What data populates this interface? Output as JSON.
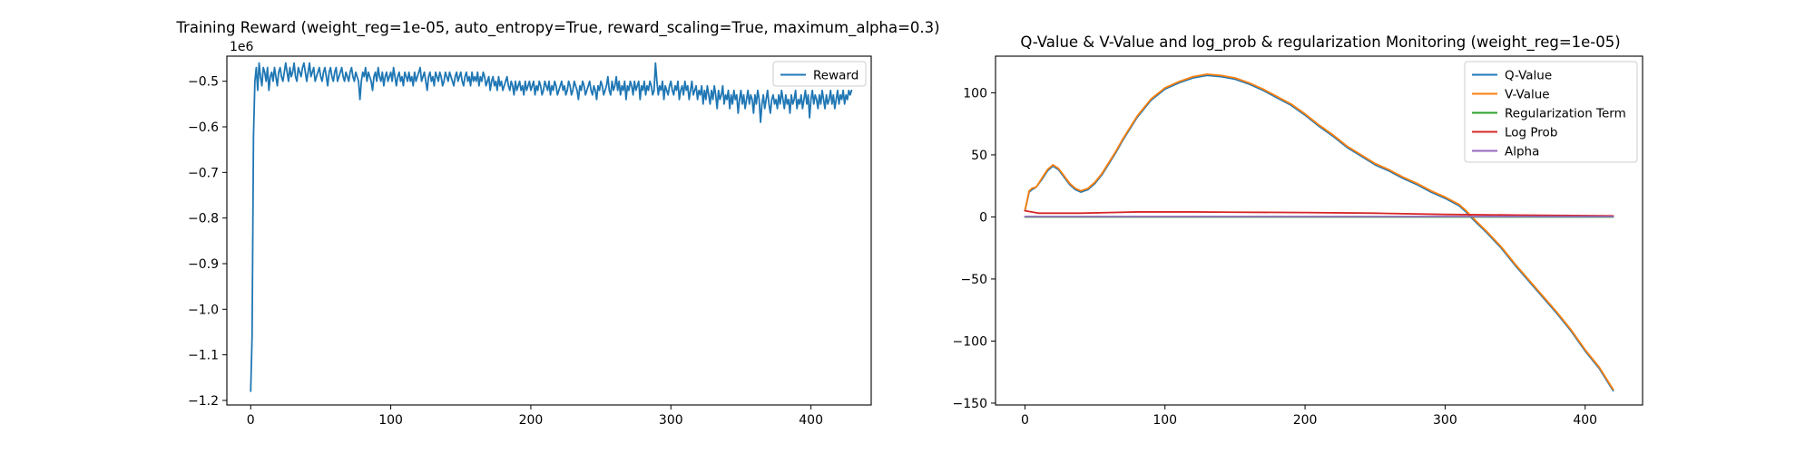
{
  "chart_data": [
    {
      "type": "line",
      "title": "Training Reward (weight_reg=1e-05, auto_entropy=True, reward_scaling=True, maximum_alpha=0.3)",
      "offset_label": "1e6",
      "xlim": [
        -17,
        443
      ],
      "ylim": [
        -1.21,
        -0.445
      ],
      "xticks": [
        0,
        100,
        200,
        300,
        400
      ],
      "yticks": [
        -0.5,
        -0.6,
        -0.7,
        -0.8,
        -0.9,
        -1.0,
        -1.1,
        -1.2
      ],
      "ytick_labels": [
        "−0.5",
        "−0.6",
        "−0.7",
        "−0.8",
        "−0.9",
        "−1.0",
        "−1.1",
        "−1.2"
      ],
      "legend_position": "upper right",
      "series": [
        {
          "name": "Reward",
          "color": "#1f77b4",
          "x_start": 0,
          "x_step": 1,
          "values": [
            -1.18,
            -1.06,
            -0.62,
            -0.5,
            -0.47,
            -0.52,
            -0.46,
            -0.49,
            -0.51,
            -0.47,
            -0.48,
            -0.5,
            -0.47,
            -0.52,
            -0.49,
            -0.48,
            -0.5,
            -0.47,
            -0.49,
            -0.51,
            -0.48,
            -0.47,
            -0.49,
            -0.5,
            -0.48,
            -0.46,
            -0.48,
            -0.5,
            -0.47,
            -0.49,
            -0.48,
            -0.46,
            -0.49,
            -0.5,
            -0.47,
            -0.48,
            -0.49,
            -0.47,
            -0.46,
            -0.48,
            -0.5,
            -0.48,
            -0.46,
            -0.49,
            -0.48,
            -0.47,
            -0.5,
            -0.49,
            -0.48,
            -0.47,
            -0.49,
            -0.5,
            -0.48,
            -0.47,
            -0.49,
            -0.51,
            -0.48,
            -0.47,
            -0.49,
            -0.5,
            -0.48,
            -0.47,
            -0.5,
            -0.49,
            -0.48,
            -0.47,
            -0.49,
            -0.5,
            -0.48,
            -0.49,
            -0.5,
            -0.48,
            -0.47,
            -0.49,
            -0.5,
            -0.48,
            -0.49,
            -0.5,
            -0.54,
            -0.5,
            -0.48,
            -0.49,
            -0.47,
            -0.5,
            -0.48,
            -0.49,
            -0.5,
            -0.52,
            -0.49,
            -0.48,
            -0.5,
            -0.47,
            -0.49,
            -0.5,
            -0.48,
            -0.51,
            -0.49,
            -0.48,
            -0.5,
            -0.49,
            -0.48,
            -0.5,
            -0.47,
            -0.49,
            -0.51,
            -0.49,
            -0.48,
            -0.5,
            -0.49,
            -0.51,
            -0.48,
            -0.49,
            -0.5,
            -0.48,
            -0.5,
            -0.49,
            -0.51,
            -0.48,
            -0.5,
            -0.49,
            -0.48,
            -0.47,
            -0.5,
            -0.49,
            -0.48,
            -0.5,
            -0.52,
            -0.49,
            -0.48,
            -0.5,
            -0.49,
            -0.51,
            -0.48,
            -0.49,
            -0.5,
            -0.48,
            -0.49,
            -0.51,
            -0.5,
            -0.48,
            -0.49,
            -0.5,
            -0.48,
            -0.49,
            -0.5,
            -0.51,
            -0.49,
            -0.48,
            -0.5,
            -0.49,
            -0.48,
            -0.5,
            -0.51,
            -0.49,
            -0.48,
            -0.5,
            -0.49,
            -0.51,
            -0.48,
            -0.5,
            -0.49,
            -0.5,
            -0.48,
            -0.51,
            -0.49,
            -0.5,
            -0.48,
            -0.49,
            -0.51,
            -0.5,
            -0.49,
            -0.52,
            -0.5,
            -0.49,
            -0.51,
            -0.5,
            -0.52,
            -0.49,
            -0.51,
            -0.5,
            -0.52,
            -0.51,
            -0.5,
            -0.49,
            -0.51,
            -0.52,
            -0.5,
            -0.51,
            -0.53,
            -0.5,
            -0.52,
            -0.51,
            -0.5,
            -0.52,
            -0.51,
            -0.53,
            -0.5,
            -0.52,
            -0.51,
            -0.5,
            -0.52,
            -0.51,
            -0.5,
            -0.53,
            -0.51,
            -0.52,
            -0.5,
            -0.51,
            -0.53,
            -0.52,
            -0.5,
            -0.51,
            -0.52,
            -0.5,
            -0.53,
            -0.51,
            -0.52,
            -0.5,
            -0.51,
            -0.53,
            -0.52,
            -0.51,
            -0.5,
            -0.52,
            -0.51,
            -0.53,
            -0.52,
            -0.5,
            -0.51,
            -0.53,
            -0.52,
            -0.5,
            -0.51,
            -0.52,
            -0.54,
            -0.51,
            -0.52,
            -0.5,
            -0.51,
            -0.53,
            -0.52,
            -0.51,
            -0.5,
            -0.52,
            -0.53,
            -0.51,
            -0.52,
            -0.54,
            -0.51,
            -0.52,
            -0.5,
            -0.51,
            -0.53,
            -0.52,
            -0.51,
            -0.49,
            -0.52,
            -0.53,
            -0.5,
            -0.52,
            -0.51,
            -0.49,
            -0.52,
            -0.5,
            -0.53,
            -0.51,
            -0.52,
            -0.5,
            -0.54,
            -0.51,
            -0.52,
            -0.5,
            -0.51,
            -0.53,
            -0.5,
            -0.52,
            -0.51,
            -0.5,
            -0.54,
            -0.51,
            -0.52,
            -0.5,
            -0.53,
            -0.51,
            -0.52,
            -0.5,
            -0.51,
            -0.53,
            -0.52,
            -0.46,
            -0.5,
            -0.53,
            -0.51,
            -0.52,
            -0.5,
            -0.54,
            -0.51,
            -0.52,
            -0.53,
            -0.51,
            -0.5,
            -0.52,
            -0.53,
            -0.51,
            -0.52,
            -0.5,
            -0.54,
            -0.52,
            -0.51,
            -0.53,
            -0.5,
            -0.52,
            -0.51,
            -0.54,
            -0.52,
            -0.5,
            -0.53,
            -0.52,
            -0.51,
            -0.54,
            -0.52,
            -0.53,
            -0.51,
            -0.55,
            -0.52,
            -0.54,
            -0.51,
            -0.53,
            -0.55,
            -0.52,
            -0.54,
            -0.51,
            -0.53,
            -0.56,
            -0.52,
            -0.54,
            -0.53,
            -0.51,
            -0.55,
            -0.53,
            -0.54,
            -0.52,
            -0.56,
            -0.53,
            -0.55,
            -0.52,
            -0.54,
            -0.53,
            -0.57,
            -0.54,
            -0.52,
            -0.55,
            -0.53,
            -0.56,
            -0.54,
            -0.52,
            -0.55,
            -0.53,
            -0.54,
            -0.57,
            -0.53,
            -0.55,
            -0.52,
            -0.54,
            -0.59,
            -0.55,
            -0.53,
            -0.56,
            -0.54,
            -0.52,
            -0.55,
            -0.57,
            -0.54,
            -0.53,
            -0.55,
            -0.54,
            -0.56,
            -0.53,
            -0.55,
            -0.52,
            -0.54,
            -0.56,
            -0.53,
            -0.55,
            -0.54,
            -0.57,
            -0.53,
            -0.55,
            -0.54,
            -0.52,
            -0.56,
            -0.54,
            -0.55,
            -0.53,
            -0.56,
            -0.54,
            -0.52,
            -0.55,
            -0.53,
            -0.58,
            -0.54,
            -0.52,
            -0.55,
            -0.53,
            -0.54,
            -0.56,
            -0.53,
            -0.55,
            -0.52,
            -0.54,
            -0.56,
            -0.53,
            -0.55,
            -0.54,
            -0.52,
            -0.55,
            -0.53,
            -0.56,
            -0.54,
            -0.52,
            -0.55,
            -0.53,
            -0.54,
            -0.52,
            -0.55,
            -0.53,
            -0.54,
            -0.52,
            -0.53,
            -0.52
          ]
        }
      ]
    },
    {
      "type": "line",
      "title": "Q-Value & V-Value and log_prob & regularization Monitoring (weight_reg=1e-05)",
      "xlim": [
        -21,
        441
      ],
      "ylim": [
        -151.5,
        129.5
      ],
      "xticks": [
        0,
        100,
        200,
        300,
        400
      ],
      "yticks": [
        100,
        50,
        0,
        -50,
        -100,
        -150
      ],
      "ytick_labels": [
        "100",
        "50",
        "0",
        "−50",
        "−100",
        "−150"
      ],
      "legend_position": "upper right",
      "series": [
        {
          "name": "Q-Value",
          "color": "#1f77b4",
          "x": [
            0,
            3,
            5,
            8,
            12,
            16,
            20,
            24,
            28,
            32,
            36,
            40,
            45,
            50,
            55,
            60,
            65,
            70,
            80,
            90,
            100,
            110,
            120,
            130,
            140,
            150,
            160,
            170,
            180,
            190,
            200,
            210,
            220,
            230,
            240,
            250,
            260,
            270,
            280,
            290,
            300,
            310,
            315,
            320,
            330,
            340,
            350,
            360,
            370,
            380,
            390,
            400,
            410,
            420
          ],
          "values": [
            5,
            20,
            22,
            24,
            30,
            37,
            41,
            38,
            32,
            26,
            22,
            20,
            22,
            27,
            34,
            43,
            52,
            62,
            80,
            94,
            103,
            108,
            112,
            114,
            113,
            111,
            107,
            102,
            96,
            90,
            82,
            73,
            65,
            56,
            49,
            42,
            37,
            31,
            26,
            20,
            15,
            9,
            4,
            -2,
            -13,
            -25,
            -39,
            -52,
            -65,
            -78,
            -92,
            -108,
            -122,
            -140
          ]
        },
        {
          "name": "V-Value",
          "color": "#ff7f0e",
          "x": [
            0,
            3,
            5,
            8,
            12,
            16,
            20,
            24,
            28,
            32,
            36,
            40,
            45,
            50,
            55,
            60,
            65,
            70,
            80,
            90,
            100,
            110,
            120,
            130,
            140,
            150,
            160,
            170,
            180,
            190,
            200,
            210,
            220,
            230,
            240,
            250,
            260,
            270,
            280,
            290,
            300,
            310,
            315,
            320,
            330,
            340,
            350,
            360,
            370,
            380,
            390,
            400,
            410,
            420
          ],
          "values": [
            5,
            21,
            23,
            24,
            31,
            38,
            42,
            39,
            33,
            27,
            23,
            21,
            23,
            28,
            35,
            44,
            53,
            63,
            81,
            95,
            104,
            109,
            113,
            115,
            114,
            112,
            108,
            103,
            97,
            91,
            83,
            74,
            66,
            57,
            50,
            43,
            38,
            32,
            27,
            21,
            16,
            10,
            5,
            -1,
            -12,
            -24,
            -38,
            -51,
            -64,
            -77,
            -91,
            -107,
            -121,
            -139
          ]
        },
        {
          "name": "Regularization Term",
          "color": "#2ca02c",
          "x": [
            0,
            420
          ],
          "values": [
            0,
            0
          ]
        },
        {
          "name": "Log Prob",
          "color": "#d62728",
          "x": [
            0,
            5,
            10,
            20,
            40,
            60,
            80,
            100,
            120,
            150,
            200,
            250,
            300,
            350,
            400,
            420
          ],
          "values": [
            5,
            4,
            3,
            3,
            3,
            3.5,
            4,
            4,
            4,
            3.8,
            3.5,
            3,
            2,
            1.5,
            1,
            0.8
          ]
        },
        {
          "name": "Alpha",
          "color": "#9467bd",
          "x": [
            0,
            420
          ],
          "values": [
            0.3,
            0.3
          ]
        }
      ]
    }
  ]
}
